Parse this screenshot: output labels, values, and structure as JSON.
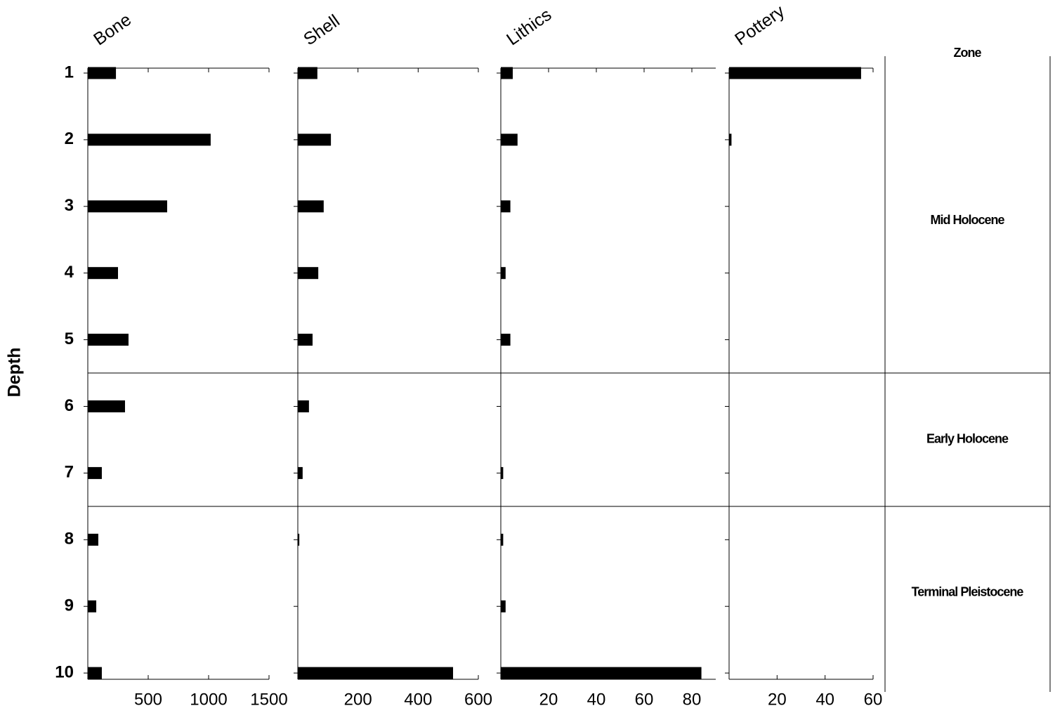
{
  "chart_data": {
    "type": "strat",
    "y_label": "Depth",
    "categories": [
      1,
      2,
      3,
      4,
      5,
      6,
      7,
      8,
      9,
      10
    ],
    "series": [
      {
        "name": "Bone",
        "color": "#000000",
        "xlim": [
          0,
          1500
        ],
        "xticks": [
          500,
          1000,
          1500
        ],
        "values": [
          233,
          1017,
          657,
          250,
          337,
          308,
          116,
          87,
          70,
          116
        ]
      },
      {
        "name": "Shell",
        "color": "#000000",
        "xlim": [
          0,
          600
        ],
        "xticks": [
          200,
          400,
          600
        ],
        "values": [
          65,
          110,
          86,
          68,
          49,
          37,
          16,
          5,
          0,
          516
        ]
      },
      {
        "name": "Lithics",
        "color": "#000000",
        "xlim": [
          0,
          90
        ],
        "xticks": [
          20,
          40,
          60,
          80
        ],
        "values": [
          5,
          7,
          4,
          2,
          4,
          0,
          1,
          1,
          2,
          84
        ]
      },
      {
        "name": "Pottery",
        "color": "#000000",
        "xlim": [
          0,
          60
        ],
        "xticks": [
          20,
          40,
          60
        ],
        "values": [
          55,
          1,
          0,
          0,
          0,
          0,
          0,
          0,
          0,
          0
        ]
      }
    ],
    "zone_title": "Zone",
    "zones": [
      {
        "label": "Mid Holocene",
        "from": 1,
        "to": 5
      },
      {
        "label": "Early Holocene",
        "from": 6,
        "to": 7
      },
      {
        "label": "Terminal Pleistocene",
        "from": 8,
        "to": 10
      }
    ]
  }
}
